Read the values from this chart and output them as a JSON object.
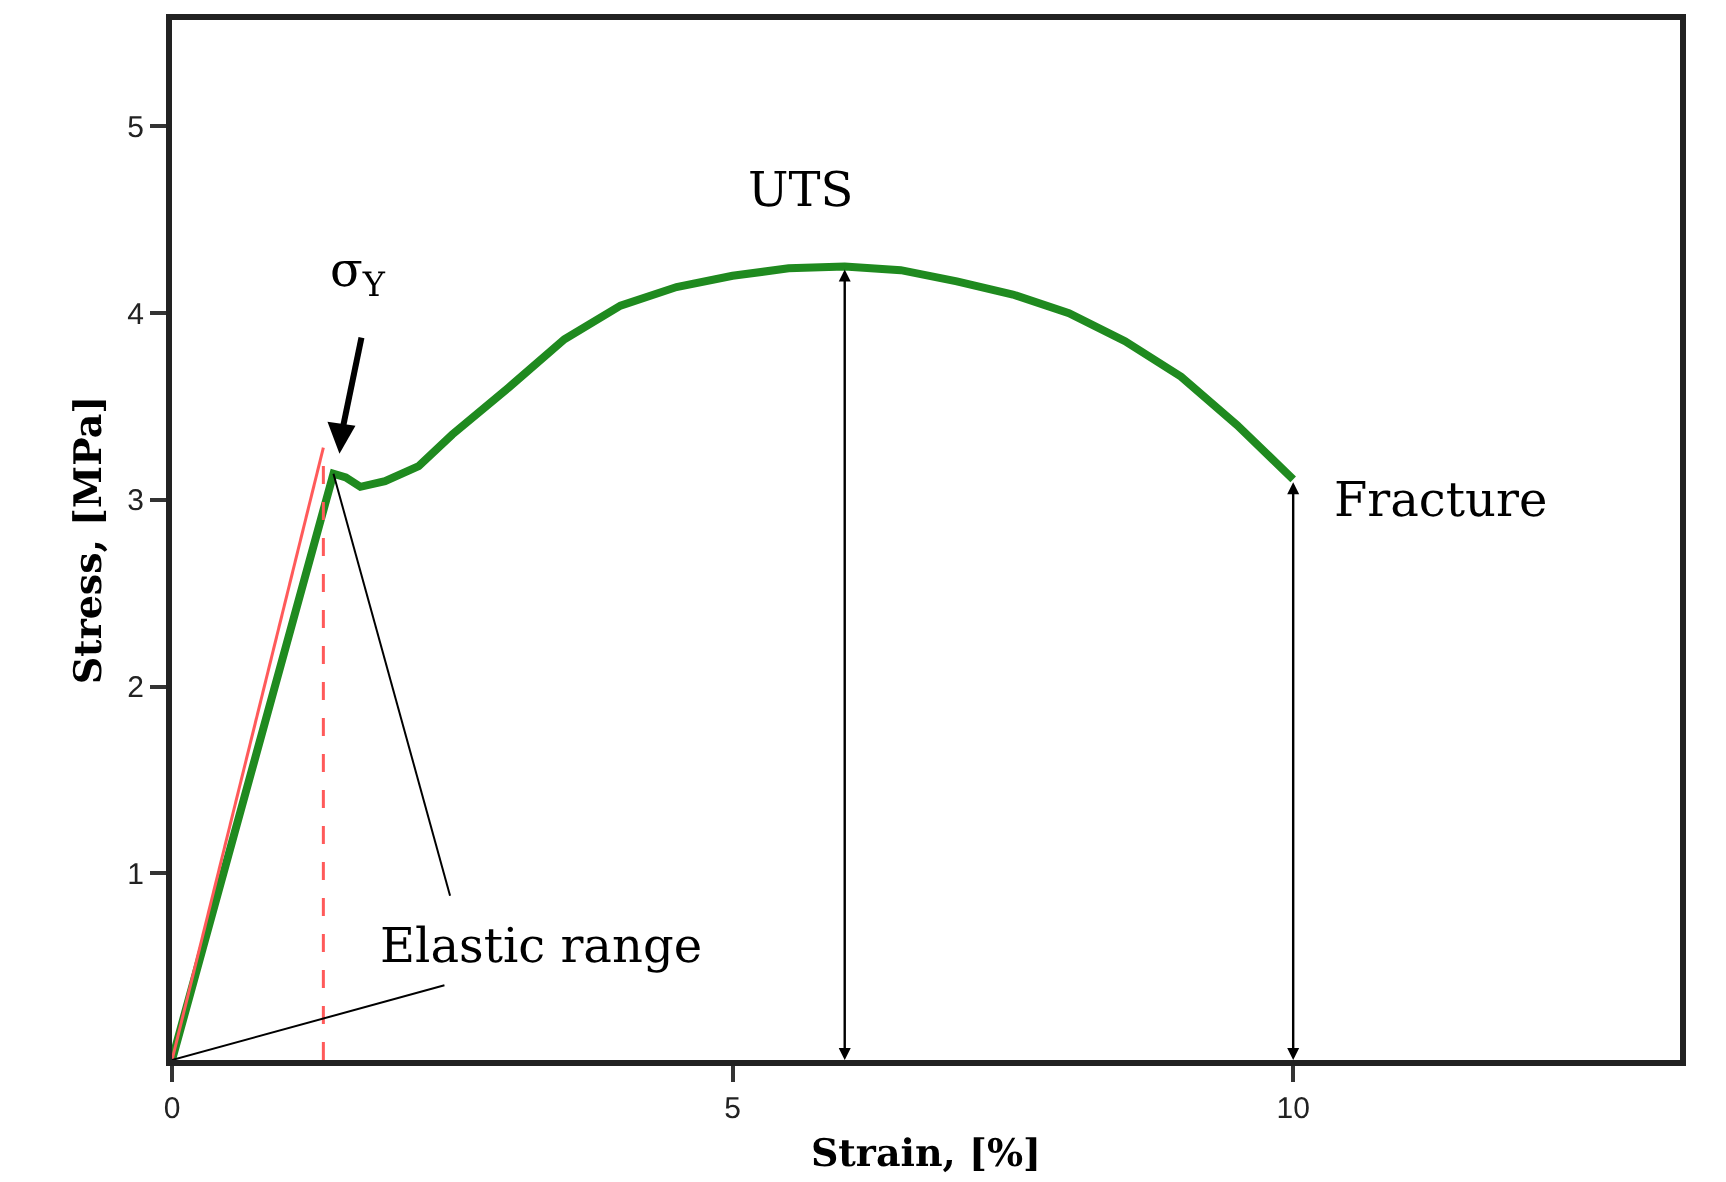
{
  "chart_data": {
    "type": "line",
    "xlabel": "Strain, [%]",
    "ylabel": "Stress, [MPa]",
    "xlim": [
      0,
      13.45
    ],
    "ylim": [
      0,
      5.57
    ],
    "xticks": [
      0,
      5,
      10
    ],
    "yticks": [
      1,
      2,
      3,
      4,
      5
    ],
    "grid": false,
    "marker": "none",
    "series": [
      {
        "color": "#1f8a1f",
        "line_style": "solid",
        "x": [
          0,
          0.5,
          1.0,
          1.44,
          1.55,
          1.68,
          1.9,
          2.2,
          2.5,
          3.0,
          3.5,
          4.0,
          4.5,
          5.0,
          5.5,
          6.0,
          6.5,
          7.0,
          7.5,
          8.0,
          8.5,
          9.0,
          9.5,
          10.0
        ],
        "values": [
          0,
          1.09,
          2.18,
          3.14,
          3.12,
          3.07,
          3.1,
          3.18,
          3.35,
          3.6,
          3.86,
          4.04,
          4.14,
          4.2,
          4.24,
          4.25,
          4.23,
          4.17,
          4.1,
          4.0,
          3.85,
          3.66,
          3.4,
          3.11
        ]
      },
      {
        "color": "#ff5a5a",
        "line_style": "solid",
        "x": [
          0,
          1.35
        ],
        "values": [
          0,
          3.28
        ]
      },
      {
        "color": "#ff5a5a",
        "line_style": "dashed",
        "x": [
          1.35,
          1.35
        ],
        "values": [
          0,
          3.2
        ]
      }
    ],
    "annotations": [
      "σ$_{Y}$",
      {
        "text": "UTS",
        "x": 6,
        "y": 4.25
      },
      {
        "text": "Fracture",
        "x": 10,
        "y": 3.11
      },
      {
        "text": "Elastic range",
        "x": 0,
        "y": 0
      }
    ]
  }
}
